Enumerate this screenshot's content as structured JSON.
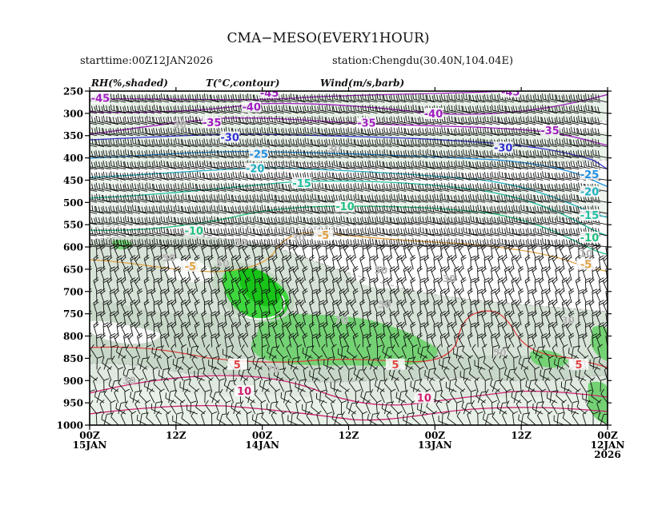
{
  "header": {
    "title": "CMA−MESO(EVERY1HOUR)",
    "starttime": "starttime:00Z12JAN2026",
    "station": "station:Chengdu(30.40N,104.04E)"
  },
  "legend": {
    "rh": "RH(%,shaded)",
    "temp": "T(°C,contour)",
    "wind": "Wind(m/s,barb)"
  },
  "chart_data": {
    "type": "heatmap",
    "description_levels": "pressure (hPa) vs time",
    "y_axis": {
      "ticks": [
        250,
        300,
        350,
        400,
        450,
        500,
        550,
        600,
        650,
        700,
        750,
        800,
        850,
        900,
        950,
        1000
      ],
      "range": [
        1000,
        250
      ]
    },
    "x_axis": {
      "ticks": [
        {
          "hour_from_left": 0,
          "l1": "00Z",
          "l2": "15JAN",
          "l3": ""
        },
        {
          "hour_from_left": 12,
          "l1": "12Z",
          "l2": "",
          "l3": ""
        },
        {
          "hour_from_left": 24,
          "l1": "00Z",
          "l2": "14JAN",
          "l3": ""
        },
        {
          "hour_from_left": 36,
          "l1": "12Z",
          "l2": "",
          "l3": ""
        },
        {
          "hour_from_left": 48,
          "l1": "00Z",
          "l2": "13JAN",
          "l3": ""
        },
        {
          "hour_from_left": 60,
          "l1": "12Z",
          "l2": "",
          "l3": ""
        },
        {
          "hour_from_left": 72,
          "l1": "00Z",
          "l2": "12JAN",
          "l3": "2026"
        }
      ],
      "range_hours": [
        0,
        72
      ]
    },
    "temperature_labels": [
      {
        "t": 1.5,
        "p": 267,
        "text": "-45",
        "color": "#a020c0"
      },
      {
        "t": 25.0,
        "p": 255,
        "text": "-45",
        "color": "#a020c0"
      },
      {
        "t": 58.5,
        "p": 253,
        "text": "-45",
        "color": "#a020c0"
      },
      {
        "t": 22.5,
        "p": 287,
        "text": "-40",
        "color": "#a020c0"
      },
      {
        "t": 47.8,
        "p": 302,
        "text": "-40",
        "color": "#a020c0"
      },
      {
        "t": 17.0,
        "p": 322,
        "text": "-35",
        "color": "#a020c0"
      },
      {
        "t": 38.5,
        "p": 323,
        "text": "-35",
        "color": "#a020c0"
      },
      {
        "t": 64.0,
        "p": 340,
        "text": "-35",
        "color": "#a020c0"
      },
      {
        "t": 19.5,
        "p": 355,
        "text": "-30",
        "color": "#3030d0"
      },
      {
        "t": 57.5,
        "p": 378,
        "text": "-30",
        "color": "#3030d0"
      },
      {
        "t": 23.5,
        "p": 393,
        "text": "-25",
        "color": "#2090e0"
      },
      {
        "t": 69.5,
        "p": 438,
        "text": "-25",
        "color": "#2090e0"
      },
      {
        "t": 23.0,
        "p": 425,
        "text": "-20",
        "color": "#20b0c0"
      },
      {
        "t": 69.5,
        "p": 477,
        "text": "-20",
        "color": "#20b0c0"
      },
      {
        "t": 29.5,
        "p": 458,
        "text": "-15",
        "color": "#20c0a0"
      },
      {
        "t": 69.5,
        "p": 530,
        "text": "-15",
        "color": "#20c0a0"
      },
      {
        "t": 35.5,
        "p": 510,
        "text": "-10",
        "color": "#20c080"
      },
      {
        "t": 14.5,
        "p": 565,
        "text": "-10",
        "color": "#20c080"
      },
      {
        "t": 69.5,
        "p": 580,
        "text": "-10",
        "color": "#20c080"
      },
      {
        "t": 32.5,
        "p": 575,
        "text": "-5",
        "color": "#e0a040"
      },
      {
        "t": 14.0,
        "p": 645,
        "text": "-5",
        "color": "#e0a040"
      },
      {
        "t": 69.0,
        "p": 640,
        "text": "-5",
        "color": "#e0a040"
      },
      {
        "t": 20.5,
        "p": 865,
        "text": "5",
        "color": "#e04040"
      },
      {
        "t": 42.5,
        "p": 865,
        "text": "5",
        "color": "#e04040"
      },
      {
        "t": 68.0,
        "p": 865,
        "text": "5",
        "color": "#e04040"
      },
      {
        "t": 21.5,
        "p": 925,
        "text": "10",
        "color": "#d02070"
      },
      {
        "t": 46.5,
        "p": 940,
        "text": "10",
        "color": "#d02070"
      }
    ],
    "rh_labels": [
      {
        "t": 12.5,
        "p": 325,
        "text": "30"
      },
      {
        "t": 34.0,
        "p": 380,
        "text": "30"
      },
      {
        "t": 29.0,
        "p": 580,
        "text": "30"
      },
      {
        "t": 50.0,
        "p": 672,
        "text": "30"
      },
      {
        "t": 5.5,
        "p": 900,
        "text": "30"
      },
      {
        "t": 21.0,
        "p": 590,
        "text": "50"
      },
      {
        "t": 11.0,
        "p": 625,
        "text": "50"
      },
      {
        "t": 18.5,
        "p": 638,
        "text": "50"
      },
      {
        "t": 40.5,
        "p": 653,
        "text": "50"
      },
      {
        "t": 41.0,
        "p": 730,
        "text": "50"
      },
      {
        "t": 57.0,
        "p": 838,
        "text": "50"
      },
      {
        "t": 66.5,
        "p": 765,
        "text": "30"
      },
      {
        "t": 69.0,
        "p": 615,
        "text": "10"
      },
      {
        "t": 35.0,
        "p": 765,
        "text": "70"
      },
      {
        "t": 25.5,
        "p": 875,
        "text": "70"
      }
    ]
  }
}
